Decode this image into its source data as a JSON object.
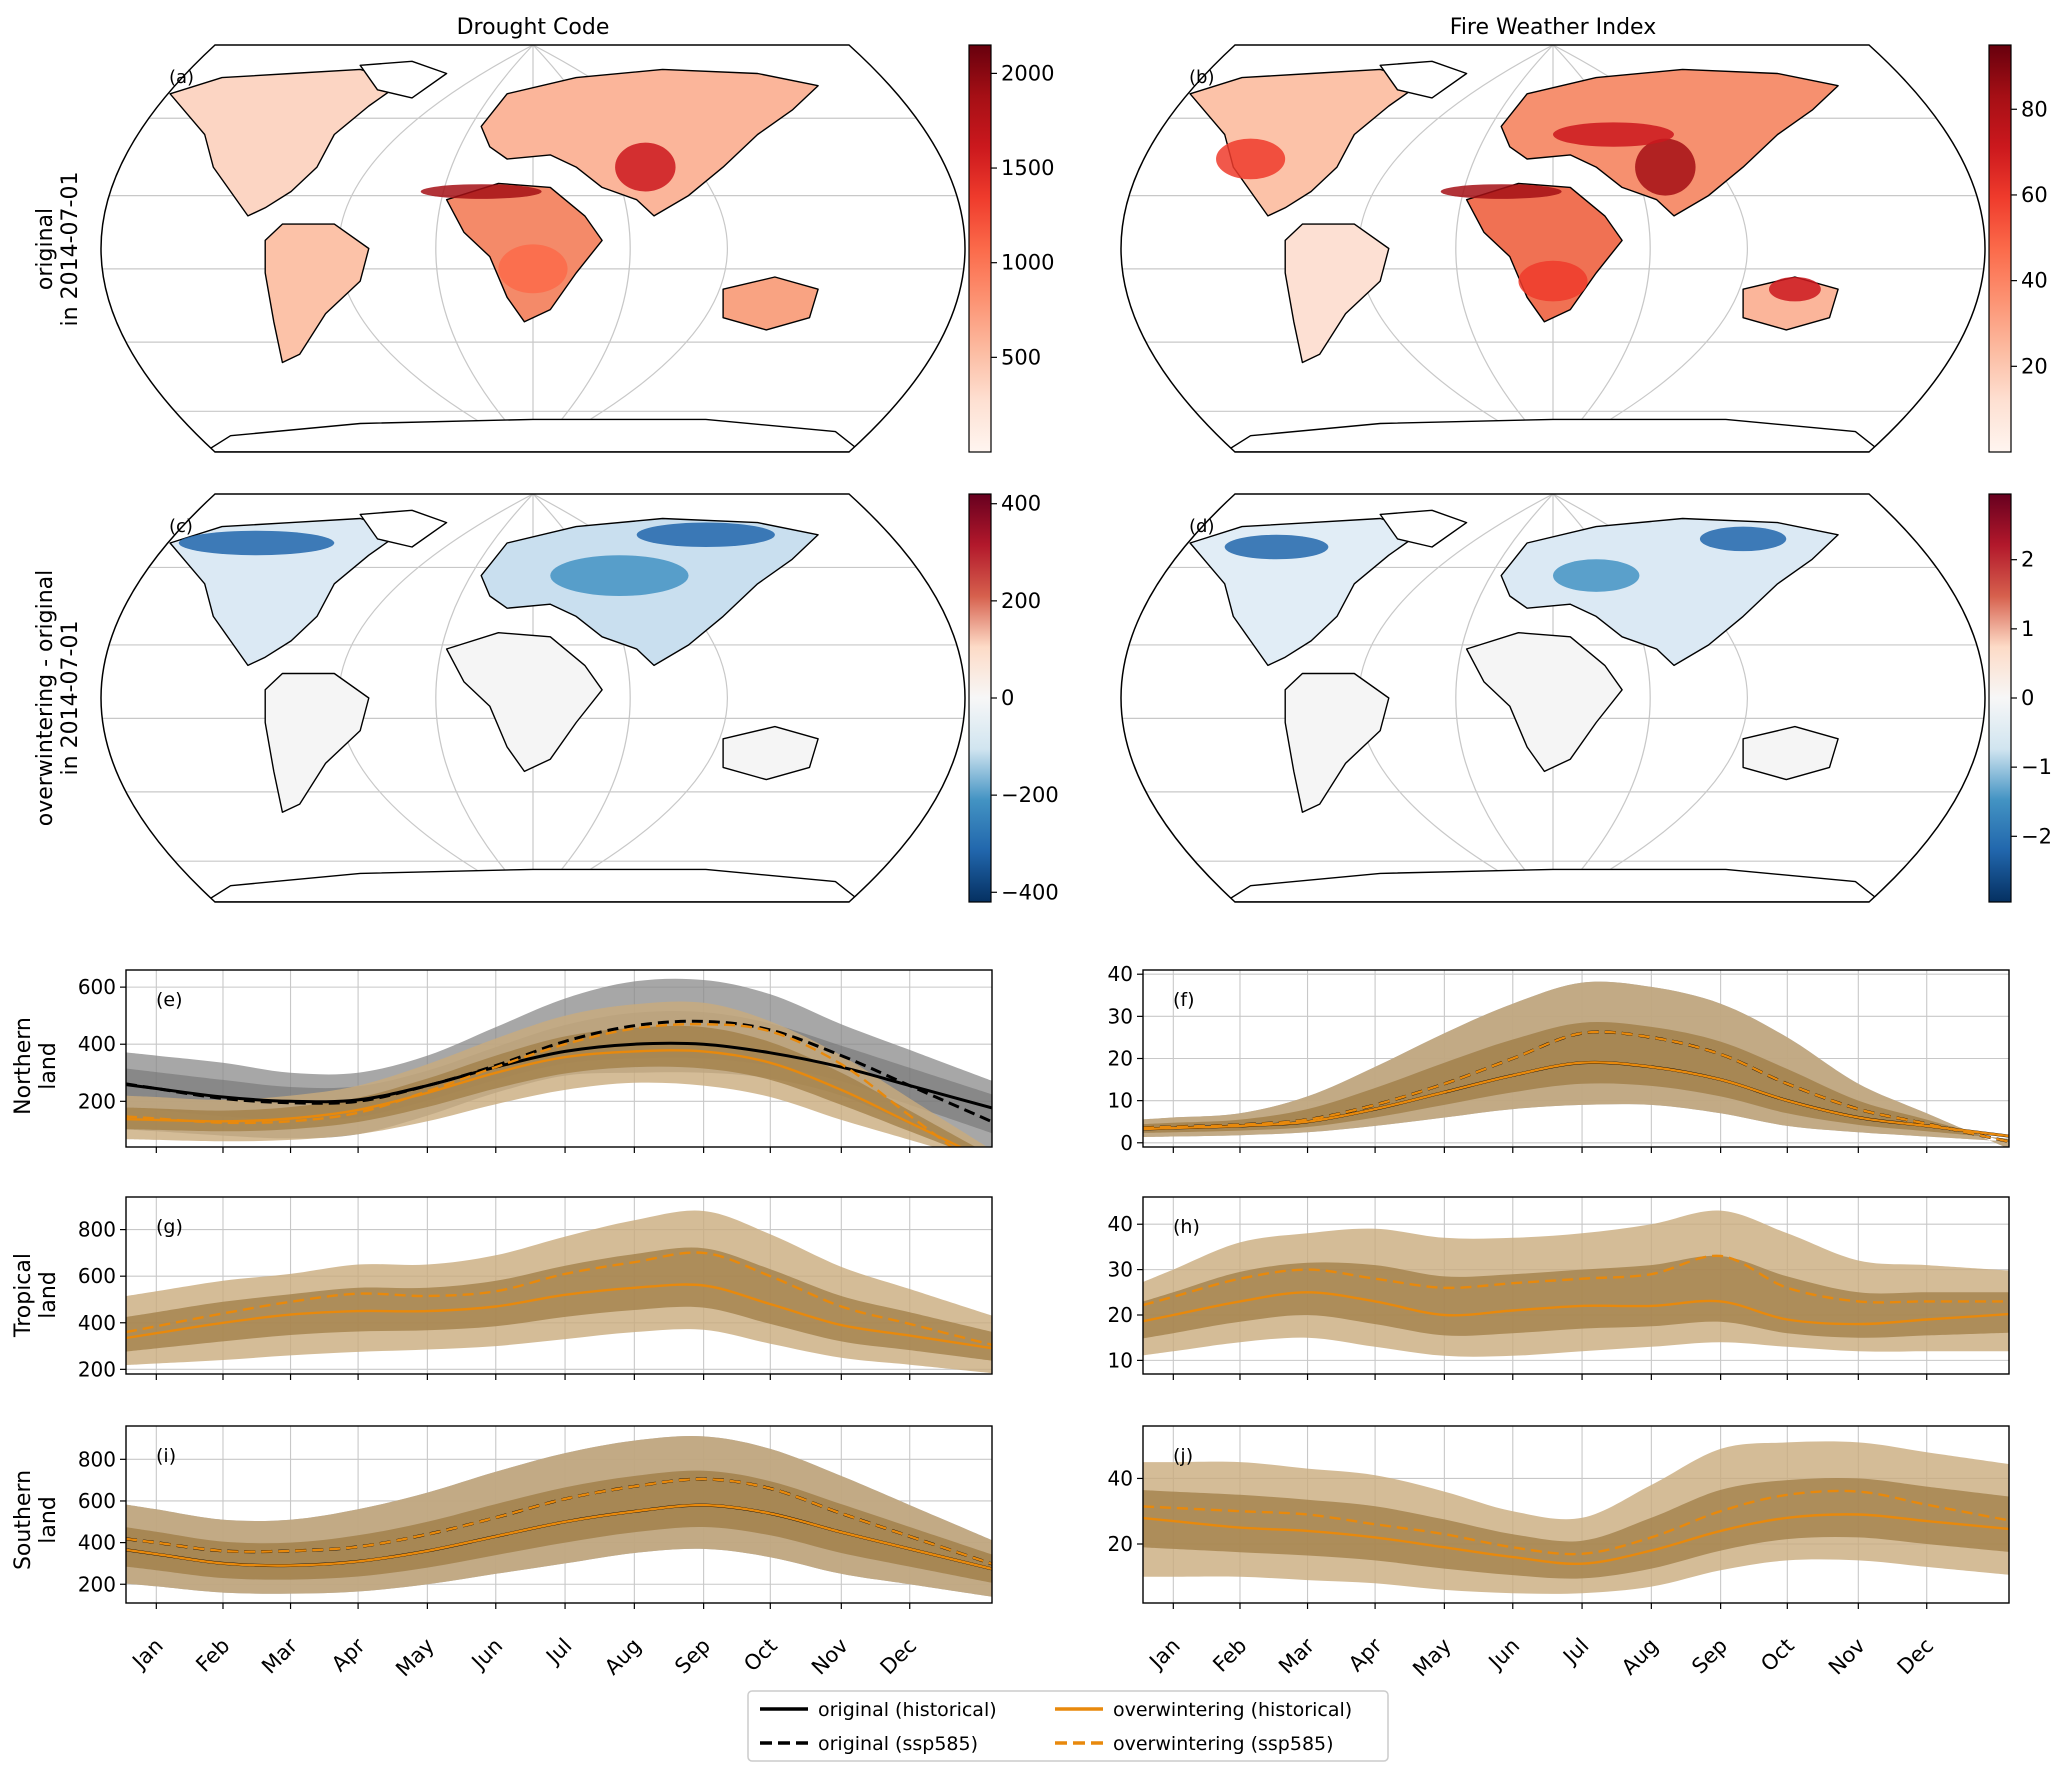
{
  "figure": {
    "column_titles": [
      "Drought Code",
      "Fire Weather Index"
    ],
    "row_labels": [
      [
        "original",
        "in 2014-07-01"
      ],
      [
        "overwintering - original",
        "in 2014-07-01"
      ]
    ]
  },
  "chart_data": [
    {
      "id": "a",
      "panel_label": "(a)",
      "type": "map",
      "variable": "Drought Code",
      "description_scope": "original in 2014-07-01",
      "colorbar": {
        "ticks": [
          "500",
          "1000",
          "1500",
          "2000"
        ],
        "tick_values": [
          500,
          1000,
          1500,
          2000
        ],
        "range": [
          0,
          2150
        ],
        "colormap": "Reds"
      }
    },
    {
      "id": "b",
      "panel_label": "(b)",
      "type": "map",
      "variable": "Fire Weather Index",
      "description_scope": "original in 2014-07-01",
      "colorbar": {
        "ticks": [
          "20",
          "40",
          "60",
          "80"
        ],
        "tick_values": [
          20,
          40,
          60,
          80
        ],
        "range": [
          0,
          95
        ],
        "colormap": "Reds"
      }
    },
    {
      "id": "c",
      "panel_label": "(c)",
      "type": "map",
      "variable": "Drought Code",
      "description_scope": "overwintering - original in 2014-07-01",
      "colorbar": {
        "ticks": [
          "400",
          "200",
          "0",
          "−200",
          "−400"
        ],
        "tick_values": [
          400,
          200,
          0,
          -200,
          -400
        ],
        "range": [
          -420,
          420
        ],
        "colormap": "RdBu_r"
      }
    },
    {
      "id": "d",
      "panel_label": "(d)",
      "type": "map",
      "variable": "Fire Weather Index",
      "description_scope": "overwintering - original in 2014-07-01",
      "colorbar": {
        "ticks": [
          "2",
          "1",
          "0",
          "−1",
          "−2"
        ],
        "tick_values": [
          2,
          1,
          0,
          -1,
          -2
        ],
        "range": [
          -2.95,
          2.95
        ],
        "colormap": "RdBu_r"
      }
    },
    {
      "id": "e",
      "panel_label": "(e)",
      "type": "line",
      "region": "Northern land",
      "variable": "Drought Code",
      "ylim": [
        40,
        660
      ],
      "yticks": [
        200,
        400,
        600
      ],
      "series": [
        {
          "name": "original (historical)",
          "values": [
            245,
            215,
            200,
            205,
            255,
            320,
            375,
            400,
            400,
            370,
            320,
            255
          ],
          "band": [
            [
              95,
              360
            ],
            [
              80,
              335
            ],
            [
              70,
              300
            ],
            [
              85,
              300
            ],
            [
              150,
              360
            ],
            [
              230,
              460
            ],
            [
              290,
              560
            ],
            [
              300,
              620
            ],
            [
              300,
              625
            ],
            [
              280,
              575
            ],
            [
              220,
              470
            ],
            [
              120,
              380
            ]
          ]
        },
        {
          "name": "original (ssp585)",
          "values": [
            245,
            210,
            195,
            200,
            255,
            325,
            410,
            465,
            480,
            450,
            360,
            255
          ]
        },
        {
          "name": "overwintering (historical)",
          "values": [
            135,
            130,
            140,
            170,
            230,
            300,
            355,
            375,
            375,
            335,
            240,
            125
          ],
          "band": [
            [
              65,
              215
            ],
            [
              60,
              205
            ],
            [
              65,
              220
            ],
            [
              85,
              255
            ],
            [
              130,
              330
            ],
            [
              190,
              420
            ],
            [
              240,
              500
            ],
            [
              265,
              540
            ],
            [
              255,
              545
            ],
            [
              215,
              480
            ],
            [
              135,
              360
            ],
            [
              65,
              210
            ]
          ]
        },
        {
          "name": "overwintering (ssp585)",
          "values": [
            140,
            125,
            130,
            160,
            235,
            320,
            400,
            455,
            470,
            445,
            330,
            150
          ]
        }
      ],
      "categories": [
        "Jan",
        "Feb",
        "Mar",
        "Apr",
        "May",
        "Jun",
        "Jul",
        "Aug",
        "Sep",
        "Oct",
        "Nov",
        "Dec"
      ]
    },
    {
      "id": "f",
      "panel_label": "(f)",
      "type": "line",
      "region": "Northern land",
      "variable": "Fire Weather Index",
      "ylim": [
        -1,
        41
      ],
      "yticks": [
        0,
        10,
        20,
        30,
        40
      ],
      "series": [
        {
          "name": "original (historical)",
          "values": [
            3.5,
            4,
            5,
            8,
            12,
            16,
            19,
            18,
            15,
            10,
            6,
            4
          ],
          "band": [
            [
              1.5,
              6
            ],
            [
              1.8,
              7
            ],
            [
              2.5,
              11
            ],
            [
              4,
              18
            ],
            [
              6,
              26
            ],
            [
              8,
              33
            ],
            [
              9,
              38
            ],
            [
              9,
              37
            ],
            [
              7,
              33
            ],
            [
              4,
              25
            ],
            [
              2.5,
              14
            ],
            [
              1.5,
              7
            ]
          ]
        },
        {
          "name": "original (ssp585)",
          "values": [
            3.8,
            4.3,
            5.5,
            9,
            14,
            20,
            26,
            25,
            21,
            14,
            8,
            4.5
          ]
        },
        {
          "name": "overwintering (historical)",
          "values": [
            3.5,
            4,
            5,
            8,
            12,
            16,
            19,
            18,
            15,
            10,
            6,
            4
          ],
          "band": [
            [
              1.5,
              6
            ],
            [
              1.8,
              7
            ],
            [
              2.5,
              11
            ],
            [
              4,
              18
            ],
            [
              6,
              26
            ],
            [
              8,
              33
            ],
            [
              9,
              38
            ],
            [
              9,
              37
            ],
            [
              7,
              33
            ],
            [
              4,
              25
            ],
            [
              2.5,
              14
            ],
            [
              1.5,
              7
            ]
          ]
        },
        {
          "name": "overwintering (ssp585)",
          "values": [
            3.8,
            4.3,
            5.5,
            9,
            14,
            20,
            26,
            25,
            21,
            14,
            8,
            4.5
          ]
        }
      ],
      "categories": [
        "Jan",
        "Feb",
        "Mar",
        "Apr",
        "May",
        "Jun",
        "Jul",
        "Aug",
        "Sep",
        "Oct",
        "Nov",
        "Dec"
      ]
    },
    {
      "id": "g",
      "panel_label": "(g)",
      "type": "line",
      "region": "Tropical land",
      "variable": "Drought Code",
      "ylim": [
        180,
        940
      ],
      "yticks": [
        200,
        400,
        600,
        800
      ],
      "series": [
        {
          "name": "overwintering (historical)",
          "values": [
            355,
            400,
            435,
            450,
            450,
            470,
            520,
            550,
            560,
            480,
            390,
            345
          ],
          "band": [
            [
              225,
              535
            ],
            [
              240,
              580
            ],
            [
              260,
              610
            ],
            [
              275,
              650
            ],
            [
              285,
              650
            ],
            [
              300,
              690
            ],
            [
              330,
              770
            ],
            [
              360,
              840
            ],
            [
              370,
              880
            ],
            [
              310,
              780
            ],
            [
              250,
              640
            ],
            [
              220,
              545
            ]
          ]
        },
        {
          "name": "overwintering (ssp585)",
          "values": [
            385,
            440,
            490,
            525,
            515,
            535,
            610,
            660,
            700,
            600,
            470,
            395
          ]
        }
      ],
      "categories": [
        "Jan",
        "Feb",
        "Mar",
        "Apr",
        "May",
        "Jun",
        "Jul",
        "Aug",
        "Sep",
        "Oct",
        "Nov",
        "Dec"
      ]
    },
    {
      "id": "h",
      "panel_label": "(h)",
      "type": "line",
      "region": "Tropical land",
      "variable": "Fire Weather Index",
      "ylim": [
        7,
        46
      ],
      "yticks": [
        10,
        20,
        30,
        40
      ],
      "series": [
        {
          "name": "overwintering (historical)",
          "values": [
            20,
            23,
            25,
            23,
            20,
            21,
            22,
            22,
            23,
            19,
            18,
            19
          ],
          "band": [
            [
              12,
              30
            ],
            [
              14,
              36
            ],
            [
              15,
              38
            ],
            [
              13,
              39
            ],
            [
              11,
              37
            ],
            [
              11,
              37
            ],
            [
              12,
              38
            ],
            [
              13,
              40
            ],
            [
              14,
              43
            ],
            [
              13,
              38
            ],
            [
              12,
              32
            ],
            [
              12,
              31
            ]
          ]
        },
        {
          "name": "overwintering (ssp585)",
          "values": [
            24,
            28,
            30,
            28,
            26,
            27,
            28,
            29,
            33,
            26,
            23,
            23
          ]
        }
      ],
      "categories": [
        "Jan",
        "Feb",
        "Mar",
        "Apr",
        "May",
        "Jun",
        "Jul",
        "Aug",
        "Sep",
        "Oct",
        "Nov",
        "Dec"
      ]
    },
    {
      "id": "i",
      "panel_label": "(i)",
      "type": "line",
      "region": "Southern land",
      "variable": "Drought Code",
      "ylim": [
        110,
        960
      ],
      "yticks": [
        200,
        400,
        600,
        800
      ],
      "series": [
        {
          "name": "original (historical)",
          "values": [
            345,
            300,
            290,
            310,
            360,
            430,
            500,
            550,
            580,
            540,
            450,
            370
          ],
          "band": [
            [
              190,
              560
            ],
            [
              160,
              510
            ],
            [
              155,
              510
            ],
            [
              165,
              560
            ],
            [
              200,
              640
            ],
            [
              250,
              740
            ],
            [
              300,
              830
            ],
            [
              350,
              890
            ],
            [
              370,
              910
            ],
            [
              330,
              850
            ],
            [
              250,
              720
            ],
            [
              200,
              580
            ]
          ]
        },
        {
          "name": "original (ssp585)",
          "values": [
            400,
            360,
            360,
            380,
            440,
            520,
            610,
            670,
            705,
            660,
            540,
            430
          ]
        },
        {
          "name": "overwintering (historical)",
          "values": [
            345,
            300,
            290,
            310,
            360,
            430,
            500,
            550,
            580,
            540,
            450,
            370
          ],
          "band": [
            [
              190,
              560
            ],
            [
              160,
              510
            ],
            [
              155,
              510
            ],
            [
              165,
              560
            ],
            [
              200,
              640
            ],
            [
              250,
              740
            ],
            [
              300,
              830
            ],
            [
              350,
              890
            ],
            [
              370,
              910
            ],
            [
              330,
              850
            ],
            [
              250,
              720
            ],
            [
              200,
              580
            ]
          ]
        },
        {
          "name": "overwintering (ssp585)",
          "values": [
            400,
            360,
            360,
            380,
            440,
            520,
            610,
            670,
            705,
            660,
            540,
            430
          ]
        }
      ],
      "categories": [
        "Jan",
        "Feb",
        "Mar",
        "Apr",
        "May",
        "Jun",
        "Jul",
        "Aug",
        "Sep",
        "Oct",
        "Nov",
        "Dec"
      ]
    },
    {
      "id": "j",
      "panel_label": "(j)",
      "type": "line",
      "region": "Southern land",
      "variable": "Fire Weather Index",
      "ylim": [
        2,
        56
      ],
      "yticks": [
        20,
        40
      ],
      "series": [
        {
          "name": "overwintering (historical)",
          "values": [
            27,
            25,
            24,
            22,
            19,
            16,
            14,
            18,
            24,
            28,
            29,
            27
          ],
          "band": [
            [
              10,
              45
            ],
            [
              10,
              45
            ],
            [
              9,
              43
            ],
            [
              8,
              41
            ],
            [
              6,
              36
            ],
            [
              5,
              30
            ],
            [
              5,
              28
            ],
            [
              7,
              38
            ],
            [
              12,
              49
            ],
            [
              15,
              51
            ],
            [
              15,
              51
            ],
            [
              13,
              48
            ]
          ]
        },
        {
          "name": "overwintering (ssp585)",
          "values": [
            31,
            30,
            29,
            26,
            23,
            19,
            17,
            22,
            30,
            35,
            36,
            32
          ]
        }
      ],
      "categories": [
        "Jan",
        "Feb",
        "Mar",
        "Apr",
        "May",
        "Jun",
        "Jul",
        "Aug",
        "Sep",
        "Oct",
        "Nov",
        "Dec"
      ]
    }
  ],
  "row_ylabels": {
    "e": [
      "Northern",
      "land"
    ],
    "g": [
      "Tropical",
      "land"
    ],
    "i": [
      "Southern",
      "land"
    ]
  },
  "legend": {
    "placement": "bottom-center",
    "entries": [
      {
        "label": "original (historical)",
        "color": "#000000",
        "dash": "solid"
      },
      {
        "label": "original (ssp585)",
        "color": "#000000",
        "dash": "dashed"
      },
      {
        "label": "overwintering (historical)",
        "color": "#e8890c",
        "dash": "solid"
      },
      {
        "label": "overwintering (ssp585)",
        "color": "#e8890c",
        "dash": "dashed"
      }
    ]
  },
  "colors": {
    "original": "#000000",
    "overwintering": "#e8890c",
    "band_original": "#8a8a8a",
    "band_overwintering_outer": "#c9ab7d",
    "band_overwintering_inner": "#a07d45",
    "land_neutral": "#f5f5f5",
    "grid": "#c8c8c8"
  }
}
